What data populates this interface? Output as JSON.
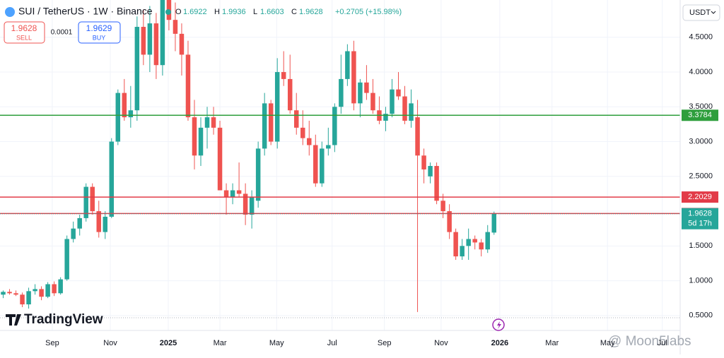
{
  "header": {
    "symbol": "SUI / TetherUS · 1W · Binance",
    "o_label": "O",
    "o": "1.6922",
    "h_label": "H",
    "h": "1.9936",
    "l_label": "L",
    "l": "1.6603",
    "c_label": "C",
    "c": "1.9628",
    "change": "+0.2705 (+15.98%)",
    "sell_price": "1.9628",
    "sell": "SELL",
    "spread": "0.0001",
    "buy_price": "1.9629",
    "buy": "BUY",
    "currency": "USDT",
    "logo": "TradingView",
    "watermark": "@ Moon5labs"
  },
  "chart_data": {
    "type": "candlestick",
    "up_color": "#26a69a",
    "down_color": "#ef5350",
    "x": [
      0,
      1,
      2,
      3,
      4,
      5,
      6,
      7,
      8,
      9,
      10,
      11,
      12,
      13,
      14,
      15,
      16,
      17,
      18,
      19,
      20,
      21,
      22,
      23,
      24,
      25,
      26,
      27,
      28,
      29,
      30,
      31,
      32,
      33,
      34,
      35,
      36,
      37,
      38,
      39,
      40,
      41,
      42,
      43,
      44,
      45,
      46,
      47,
      48,
      49,
      50,
      51,
      52,
      53,
      54,
      55,
      56,
      57,
      58,
      59,
      60,
      61,
      62,
      63,
      64,
      65,
      66,
      67,
      68,
      69,
      70,
      71,
      72,
      73,
      74,
      75,
      76,
      77
    ],
    "ohlc": [
      [
        0.8,
        0.86,
        0.75,
        0.84
      ],
      [
        0.84,
        0.88,
        0.8,
        0.82
      ],
      [
        0.82,
        0.86,
        0.78,
        0.8
      ],
      [
        0.8,
        0.83,
        0.62,
        0.66
      ],
      [
        0.66,
        0.9,
        0.6,
        0.85
      ],
      [
        0.85,
        0.95,
        0.8,
        0.88
      ],
      [
        0.88,
        0.92,
        0.72,
        0.77
      ],
      [
        0.77,
        0.98,
        0.75,
        0.95
      ],
      [
        0.95,
        0.99,
        0.78,
        0.82
      ],
      [
        0.82,
        1.05,
        0.8,
        1.02
      ],
      [
        1.02,
        1.65,
        1.0,
        1.6
      ],
      [
        1.6,
        1.85,
        1.55,
        1.75
      ],
      [
        1.75,
        1.95,
        1.65,
        1.9
      ],
      [
        1.9,
        2.4,
        1.85,
        2.35
      ],
      [
        2.35,
        2.4,
        1.95,
        2.0
      ],
      [
        2.0,
        2.15,
        1.62,
        1.7
      ],
      [
        1.7,
        2.0,
        1.6,
        1.92
      ],
      [
        1.92,
        3.05,
        1.9,
        3.0
      ],
      [
        3.0,
        3.75,
        2.95,
        3.7
      ],
      [
        3.7,
        3.9,
        3.3,
        3.35
      ],
      [
        3.35,
        3.8,
        3.2,
        3.45
      ],
      [
        3.45,
        4.8,
        3.3,
        4.65
      ],
      [
        4.65,
        4.9,
        4.1,
        4.25
      ],
      [
        4.25,
        4.95,
        4.0,
        4.7
      ],
      [
        4.7,
        4.85,
        3.9,
        4.1
      ],
      [
        4.1,
        5.3,
        3.95,
        5.1
      ],
      [
        5.1,
        5.35,
        4.6,
        4.75
      ],
      [
        4.75,
        5.0,
        4.3,
        4.55
      ],
      [
        4.55,
        4.7,
        3.95,
        4.25
      ],
      [
        4.25,
        4.45,
        3.3,
        3.35
      ],
      [
        3.35,
        3.6,
        2.6,
        2.8
      ],
      [
        2.8,
        3.35,
        2.65,
        3.2
      ],
      [
        3.2,
        3.5,
        2.9,
        3.35
      ],
      [
        3.35,
        3.5,
        3.1,
        3.2
      ],
      [
        3.2,
        3.3,
        2.3,
        2.3
      ],
      [
        2.3,
        2.4,
        1.95,
        2.2
      ],
      [
        2.2,
        2.4,
        2.1,
        2.3
      ],
      [
        2.3,
        2.7,
        2.2,
        2.25
      ],
      [
        2.25,
        2.4,
        1.8,
        1.95
      ],
      [
        1.95,
        2.3,
        1.75,
        2.2
      ],
      [
        2.15,
        3.0,
        2.05,
        2.9
      ],
      [
        2.9,
        3.7,
        2.8,
        3.55
      ],
      [
        3.55,
        3.6,
        2.95,
        3.0
      ],
      [
        3.0,
        4.2,
        2.9,
        4.0
      ],
      [
        4.0,
        4.3,
        3.8,
        3.9
      ],
      [
        3.9,
        4.25,
        3.4,
        3.45
      ],
      [
        3.45,
        3.7,
        3.1,
        3.2
      ],
      [
        3.2,
        3.45,
        2.95,
        3.05
      ],
      [
        3.05,
        3.3,
        2.8,
        2.95
      ],
      [
        2.95,
        3.1,
        2.35,
        2.4
      ],
      [
        2.4,
        3.0,
        2.35,
        2.9
      ],
      [
        2.9,
        3.2,
        2.8,
        2.95
      ],
      [
        2.95,
        3.55,
        2.85,
        3.5
      ],
      [
        3.5,
        4.25,
        3.4,
        3.9
      ],
      [
        3.9,
        4.4,
        3.8,
        4.3
      ],
      [
        4.3,
        4.45,
        3.45,
        3.55
      ],
      [
        3.55,
        3.9,
        3.35,
        3.85
      ],
      [
        3.85,
        4.1,
        3.6,
        3.7
      ],
      [
        3.7,
        3.9,
        3.4,
        3.45
      ],
      [
        3.45,
        3.65,
        3.25,
        3.3
      ],
      [
        3.3,
        3.5,
        3.15,
        3.4
      ],
      [
        3.4,
        3.9,
        3.35,
        3.75
      ],
      [
        3.75,
        4.0,
        3.6,
        3.65
      ],
      [
        3.65,
        3.8,
        3.25,
        3.3
      ],
      [
        3.3,
        3.75,
        3.2,
        3.55
      ],
      [
        3.35,
        3.6,
        0.55,
        2.8
      ],
      [
        2.8,
        2.9,
        2.4,
        2.6
      ],
      [
        2.5,
        2.7,
        2.4,
        2.65
      ],
      [
        2.65,
        2.7,
        2.1,
        2.15
      ],
      [
        2.15,
        2.25,
        1.9,
        2.0
      ],
      [
        2.0,
        2.1,
        1.6,
        1.7
      ],
      [
        1.7,
        1.75,
        1.3,
        1.35
      ],
      [
        1.35,
        1.6,
        1.3,
        1.5
      ],
      [
        1.5,
        1.75,
        1.3,
        1.6
      ],
      [
        1.6,
        1.65,
        1.45,
        1.55
      ],
      [
        1.55,
        1.6,
        1.35,
        1.45
      ],
      [
        1.45,
        1.8,
        1.4,
        1.7
      ],
      [
        1.6922,
        1.9936,
        1.6603,
        1.9628
      ]
    ],
    "xlim": [
      -0.5,
      106.2
    ],
    "xticks": [
      {
        "value": 7.7,
        "label": "Sep"
      },
      {
        "value": 16.8,
        "label": "Nov"
      },
      {
        "value": 25.9,
        "label": "2025"
      },
      {
        "value": 34.0,
        "label": "Mar"
      },
      {
        "value": 42.9,
        "label": "May"
      },
      {
        "value": 51.6,
        "label": "Jul"
      },
      {
        "value": 59.8,
        "label": "Sep"
      },
      {
        "value": 68.7,
        "label": "Nov"
      },
      {
        "value": 77.9,
        "label": "2026"
      },
      {
        "value": 86.1,
        "label": "Mar"
      },
      {
        "value": 94.8,
        "label": "May"
      },
      {
        "value": 103.4,
        "label": "Jul"
      }
    ],
    "ylim": [
      0.285,
      5.036
    ],
    "yticks": [
      {
        "value": 0.5,
        "label": "0.5000"
      },
      {
        "value": 1.0,
        "label": "1.0000"
      },
      {
        "value": 1.5,
        "label": "1.5000"
      },
      {
        "value": 2.0,
        "label": "2.0000"
      },
      {
        "value": 2.5,
        "label": "2.5000"
      },
      {
        "value": 3.0,
        "label": "3.0000"
      },
      {
        "value": 3.5,
        "label": "3.5000"
      },
      {
        "value": 4.0,
        "label": "4.0000"
      },
      {
        "value": 4.5,
        "label": "4.5000"
      }
    ],
    "lines": [
      {
        "value": 3.3784,
        "color": "#2e9e3c"
      },
      {
        "value": 2.2029,
        "color": "#e23b48"
      },
      {
        "value": 1.9659,
        "color": "#e23b48"
      }
    ],
    "last_price": {
      "value": 1.9628,
      "color": "#26a69a",
      "countdown": "5d 17h"
    }
  }
}
